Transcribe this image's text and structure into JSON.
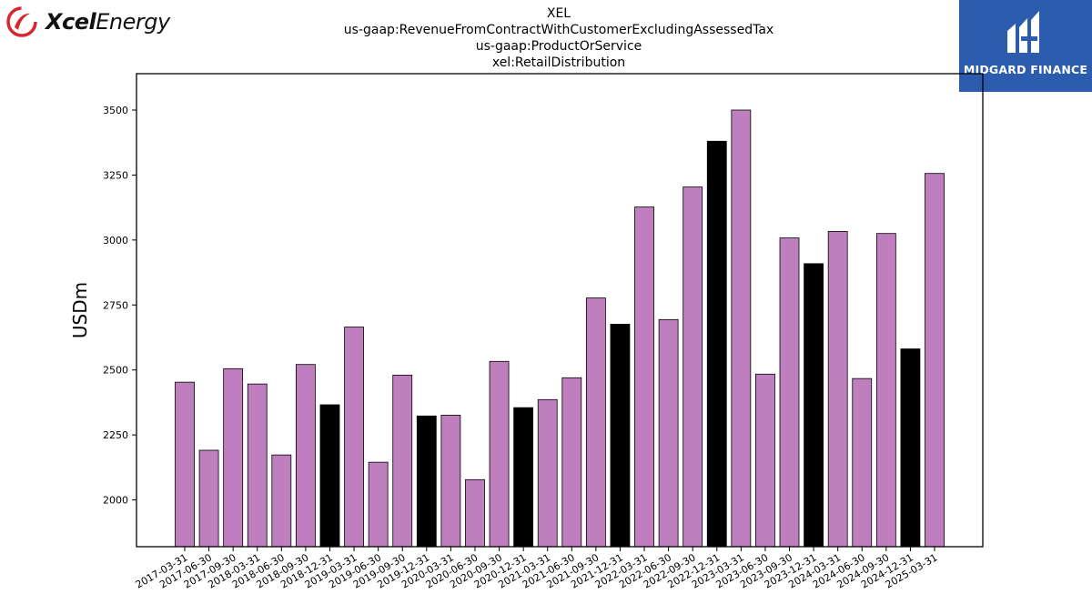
{
  "branding": {
    "left_logo_bold": "Xcel",
    "left_logo_light": "Energy",
    "right_logo_text": "MIDGARD FINANCE"
  },
  "header": {
    "title_lines": [
      "XEL",
      "us-gaap:RevenueFromContractWithCustomerExcludingAssessedTax",
      "us-gaap:ProductOrService",
      "xel:RetailDistribution"
    ]
  },
  "colors": {
    "bar_default": "#bf7fbf",
    "bar_highlight": "#000000",
    "logo_red": "#d9262e",
    "logo_blue": "#2c5cad"
  },
  "chart_data": {
    "type": "bar",
    "ylabel": "USDm",
    "xlabel": "",
    "ylim": [
      1820,
      3640
    ],
    "yticks": [
      2000,
      2250,
      2500,
      2750,
      3000,
      3250,
      3500
    ],
    "grid": false,
    "categories": [
      "2017-03-31",
      "2017-06-30",
      "2017-09-30",
      "2018-03-31",
      "2018-06-30",
      "2018-09-30",
      "2018-12-31",
      "2019-03-31",
      "2019-06-30",
      "2019-09-30",
      "2019-12-31",
      "2020-03-31",
      "2020-06-30",
      "2020-09-30",
      "2020-12-31",
      "2021-03-31",
      "2021-06-30",
      "2021-09-30",
      "2021-12-31",
      "2022-03-31",
      "2022-06-30",
      "2022-09-30",
      "2022-12-31",
      "2023-03-31",
      "2023-06-30",
      "2023-09-30",
      "2023-12-31",
      "2024-03-31",
      "2024-06-30",
      "2024-09-30",
      "2024-12-31",
      "2025-03-31"
    ],
    "values": [
      2453,
      2191,
      2505,
      2446,
      2173,
      2521,
      2366,
      2665,
      2145,
      2480,
      2323,
      2326,
      2078,
      2533,
      2355,
      2386,
      2470,
      2777,
      2676,
      3127,
      2694,
      3204,
      3380,
      3500,
      2484,
      3008,
      2909,
      3033,
      2467,
      3025,
      2581,
      3256
    ],
    "highlight": [
      false,
      false,
      false,
      false,
      false,
      false,
      true,
      false,
      false,
      false,
      true,
      false,
      false,
      false,
      true,
      false,
      false,
      false,
      true,
      false,
      false,
      false,
      true,
      false,
      false,
      false,
      true,
      false,
      false,
      false,
      true,
      false
    ]
  }
}
